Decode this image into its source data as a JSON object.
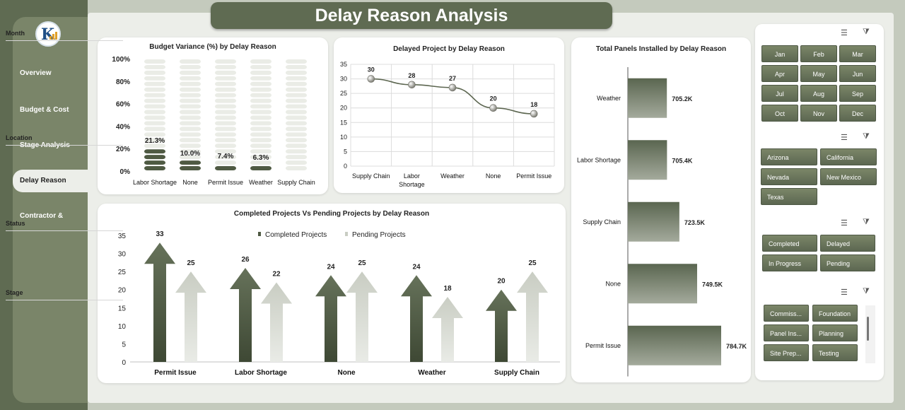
{
  "title": "Delay Reason Analysis",
  "sidebar": {
    "items": [
      {
        "label": "Overview"
      },
      {
        "label": "Budget & Cost"
      },
      {
        "label": "Stage Analysis"
      },
      {
        "label": "Delay Reason"
      },
      {
        "label": "Contractor &"
      }
    ],
    "active": "Delay Reason"
  },
  "colors": {
    "accent": "#5f6b52",
    "bar_light": "#eaece6",
    "bar_dark": "#4f5a43"
  },
  "chart_data": [
    {
      "type": "bar",
      "title": "Budget Variance (%) by Delay Reason",
      "categories": [
        "Labor Shortage",
        "None",
        "Permit Issue",
        "Weather",
        "Supply Chain"
      ],
      "values": [
        21.3,
        10.0,
        7.4,
        6.3,
        0
      ],
      "data_labels": [
        "21.3%",
        "10.0%",
        "7.4%",
        "6.3%",
        ""
      ],
      "yticks": [
        "0%",
        "20%",
        "40%",
        "60%",
        "80%",
        "100%"
      ],
      "ylim": [
        0,
        100
      ]
    },
    {
      "type": "line",
      "title": "Delayed Project by Delay Reason",
      "categories": [
        "Supply Chain",
        "Labor Shortage",
        "Weather",
        "None",
        "Permit Issue"
      ],
      "values": [
        30,
        28,
        27,
        20,
        18
      ],
      "yticks": [
        "0",
        "5",
        "10",
        "15",
        "20",
        "25",
        "30",
        "35"
      ],
      "ylim": [
        0,
        35
      ]
    },
    {
      "type": "bar",
      "title": "Completed Projects Vs Pending Projects by Delay Reason",
      "categories": [
        "Permit Issue",
        "Labor Shortage",
        "None",
        "Weather",
        "Supply Chain"
      ],
      "series": [
        {
          "name": "Completed Projects",
          "values": [
            33,
            26,
            24,
            24,
            20
          ]
        },
        {
          "name": "Pending Projects",
          "values": [
            25,
            22,
            25,
            18,
            25
          ]
        }
      ],
      "yticks": [
        "0",
        "5",
        "10",
        "15",
        "20",
        "25",
        "30",
        "35"
      ],
      "ylim": [
        0,
        35
      ],
      "legend": "top"
    },
    {
      "type": "bar",
      "orientation": "horizontal",
      "title": "Total Panels Installed by Delay Reason",
      "categories": [
        "Weather",
        "Labor Shortage",
        "Supply Chain",
        "None",
        "Permit Issue"
      ],
      "values": [
        705.2,
        705.4,
        723.5,
        749.5,
        784.7
      ],
      "data_labels": [
        "705.2K",
        "705.4K",
        "723.5K",
        "749.5K",
        "784.7K"
      ],
      "unit": "K"
    }
  ],
  "slicers": [
    {
      "label": "Month",
      "items": [
        "Jan",
        "Feb",
        "Mar",
        "Apr",
        "May",
        "Jun",
        "Jul",
        "Aug",
        "Sep",
        "Oct",
        "Nov",
        "Dec"
      ]
    },
    {
      "label": "Location",
      "items": [
        "Arizona",
        "California",
        "Nevada",
        "New Mexico",
        "Texas"
      ]
    },
    {
      "label": "Status",
      "items": [
        "Completed",
        "Delayed",
        "In Progress",
        "Pending"
      ]
    },
    {
      "label": "Stage",
      "items": [
        "Commiss...",
        "Foundation",
        "Panel Ins...",
        "Planning",
        "Site Prep...",
        "Testing"
      ]
    }
  ]
}
